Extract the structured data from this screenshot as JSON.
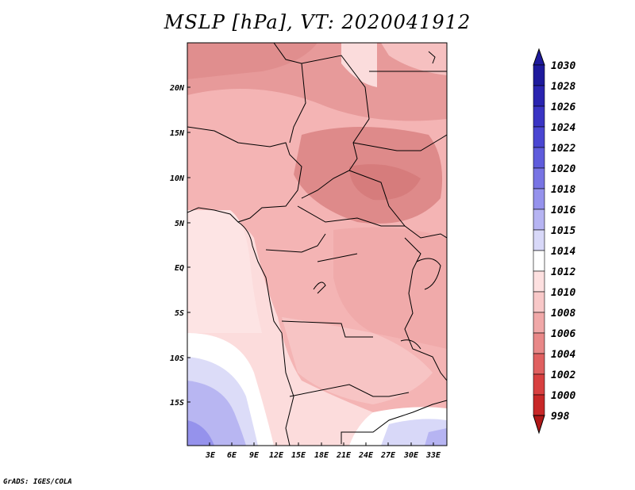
{
  "title": "MSLP [hPa], VT: 2020041912",
  "footer": "GrADS: IGES/COLA",
  "map": {
    "lat_labels": [
      "20N",
      "15N",
      "10N",
      "5N",
      "EQ",
      "5S",
      "10S",
      "15S"
    ],
    "lon_labels": [
      "3E",
      "6E",
      "9E",
      "12E",
      "15E",
      "18E",
      "21E",
      "24E",
      "27E",
      "30E",
      "33E"
    ]
  },
  "colorbar": {
    "labels": [
      "1030",
      "1028",
      "1026",
      "1024",
      "1022",
      "1020",
      "1018",
      "1016",
      "1015",
      "1014",
      "1012",
      "1010",
      "1008",
      "1006",
      "1004",
      "1002",
      "1000",
      "998"
    ],
    "colors": [
      "#1e1a9c",
      "#2a24b0",
      "#3a34c4",
      "#4a46d2",
      "#5f5cdc",
      "#7874e4",
      "#9592ec",
      "#b6b4f2",
      "#d8d8f8",
      "#ffffff",
      "#fde0e0",
      "#f8c8c8",
      "#f0a8a8",
      "#e88888",
      "#e06060",
      "#d84040",
      "#c82828",
      "#b01818"
    ]
  }
}
